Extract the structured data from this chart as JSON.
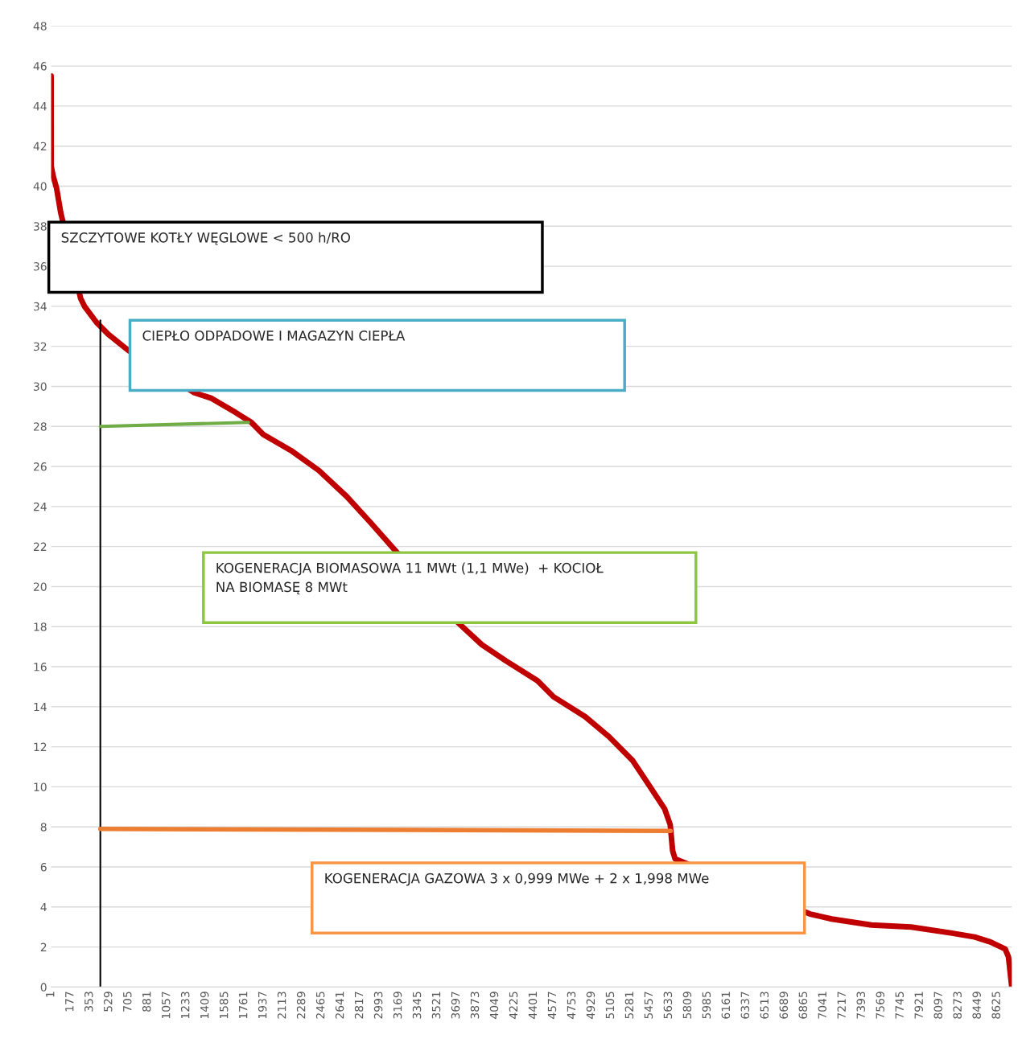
{
  "chart_data": {
    "type": "line",
    "xlim": [
      1,
      8760
    ],
    "ylim": [
      0,
      48
    ],
    "xticks": [
      1,
      177,
      353,
      529,
      705,
      881,
      1057,
      1233,
      1409,
      1585,
      1761,
      1937,
      2113,
      2289,
      2465,
      2641,
      2817,
      2993,
      3169,
      3345,
      3521,
      3697,
      3873,
      4049,
      4225,
      4401,
      4577,
      4753,
      4929,
      5105,
      5281,
      5457,
      5633,
      5809,
      5985,
      6161,
      6337,
      6513,
      6689,
      6865,
      7041,
      7217,
      7393,
      7569,
      7745,
      7921,
      8097,
      8273,
      8449,
      8625
    ],
    "yticks": [
      0,
      2,
      4,
      6,
      8,
      10,
      12,
      14,
      16,
      18,
      20,
      22,
      24,
      26,
      28,
      30,
      32,
      34,
      36,
      38,
      40,
      42,
      44,
      46,
      48
    ],
    "grid": "y",
    "legend": false,
    "series": [
      {
        "color": "#c00000",
        "x": [
          1,
          2,
          20,
          51,
          88,
          270,
          305,
          414,
          523,
          704,
          1300,
          1465,
          1682,
          1827,
          1935,
          2188,
          2442,
          2696,
          2913,
          3131,
          3711,
          3928,
          4146,
          4436,
          4581,
          4871,
          5088,
          5305,
          5450,
          5595,
          5646,
          5668,
          5690,
          6920,
          7117,
          7480,
          7842,
          8204,
          8421,
          8566,
          8700,
          8730,
          8760
        ],
        "values": [
          45.5,
          41,
          40.5,
          39.9,
          38.7,
          34.4,
          34.0,
          33.2,
          32.6,
          31.8,
          29.7,
          29.4,
          28.7,
          28.2,
          27.6,
          26.8,
          25.8,
          24.5,
          23.2,
          21.85,
          18.2,
          17.1,
          16.3,
          15.3,
          14.5,
          13.5,
          12.5,
          11.3,
          10.1,
          8.9,
          8.1,
          6.8,
          6.4,
          3.65,
          3.4,
          3.1,
          3.0,
          2.7,
          2.5,
          2.25,
          1.9,
          1.5,
          0
        ]
      },
      {
        "color": "#000000",
        "x": [
          450,
          450
        ],
        "values": [
          0,
          33.3
        ]
      },
      {
        "color": "#70ad47",
        "x": [
          450,
          1800
        ],
        "values": [
          28.0,
          28.2
        ]
      },
      {
        "color": "#ed7d31",
        "x": [
          450,
          5650
        ],
        "values": [
          7.9,
          7.8
        ]
      }
    ],
    "annotations": [
      "SZCZYTOWE KOTŁY WĘGLOWE < 500 h/RO",
      "CIEPŁO ODPADOWE I MAGAZYN CIEPŁA",
      "KOGENERACJA BIOMASOWA 11 MWt (1,1 MWe)  + KOCIOŁ\nNA BIOMASĘ 8 MWt",
      "KOGENERACJA GAZOWA 3 x 0,999 MWe + 2 x 1,998 MWe"
    ]
  }
}
